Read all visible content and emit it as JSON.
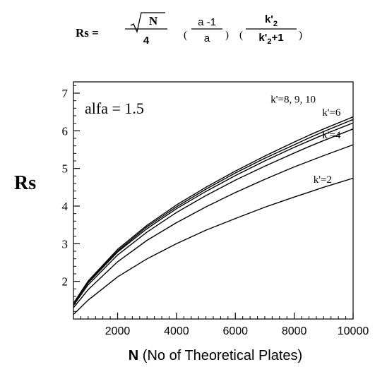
{
  "equation": {
    "lhs": "Rs =",
    "sqrt_arg": "N",
    "den1": "4",
    "paren_open_1": "(",
    "num2": "a -1",
    "den2": "a",
    "paren_close_1": ")",
    "paren_open_2": "(",
    "num3_base": "k'",
    "num3_sub": "2",
    "den3_base": "k'",
    "den3_sub": "2",
    "den3_tail": "+1",
    "paren_close_2": ")"
  },
  "chart_data": {
    "type": "line",
    "ylabel": "Rs",
    "xlabel_bold": "N",
    "xlabel_rest": " (No of Theoretical Plates)",
    "annotation": "alfa = 1.5",
    "xlim": [
      500,
      10000
    ],
    "ylim": [
      1,
      7.3
    ],
    "xticks": [
      2000,
      4000,
      6000,
      8000,
      10000
    ],
    "xtick_labels": [
      "2000",
      "4000",
      "6000",
      "8000",
      "10000"
    ],
    "yticks": [
      2,
      3,
      4,
      5,
      6,
      7
    ],
    "ytick_labels": [
      "2",
      "3",
      "4",
      "5",
      "6",
      "7"
    ],
    "grid": false,
    "x": [
      500,
      1000,
      2000,
      3000,
      4000,
      5000,
      6000,
      7000,
      8000,
      8500,
      9000,
      10000
    ],
    "series": [
      {
        "label": "k'=2",
        "values": [
          1.12,
          1.5,
          2.12,
          2.6,
          3.0,
          3.36,
          3.67,
          3.97,
          4.24,
          4.37,
          4.5,
          4.74
        ]
      },
      {
        "label": "k'=4",
        "values": [
          1.3,
          1.78,
          2.52,
          3.09,
          3.56,
          3.98,
          4.36,
          4.71,
          5.04,
          5.19,
          5.34,
          5.63
        ]
      },
      {
        "label": "k'=6",
        "values": [
          1.36,
          1.91,
          2.7,
          3.31,
          3.83,
          4.28,
          4.69,
          5.06,
          5.41,
          5.58,
          5.74,
          6.05
        ]
      },
      {
        "label": "",
        "values": [
          1.4,
          1.96,
          2.78,
          3.4,
          3.93,
          4.39,
          4.81,
          5.2,
          5.56,
          5.73,
          5.9,
          6.21
        ]
      },
      {
        "label": "",
        "values": [
          1.41,
          1.99,
          2.81,
          3.45,
          3.98,
          4.45,
          4.88,
          5.27,
          5.63,
          5.81,
          5.98,
          6.3
        ]
      },
      {
        "label": "",
        "values": [
          1.42,
          2.01,
          2.85,
          3.49,
          4.03,
          4.5,
          4.93,
          5.33,
          5.7,
          5.88,
          6.05,
          6.37
        ]
      }
    ],
    "curve_labels": [
      {
        "text": "k'=8, 9, 10",
        "at": [
          7200,
          6.75
        ]
      },
      {
        "text": "k'=6",
        "at": [
          8950,
          6.4
        ]
      },
      {
        "text": "k'=4",
        "at": [
          8950,
          5.8
        ]
      },
      {
        "text": "k'=2",
        "at": [
          8650,
          4.62
        ]
      }
    ]
  }
}
